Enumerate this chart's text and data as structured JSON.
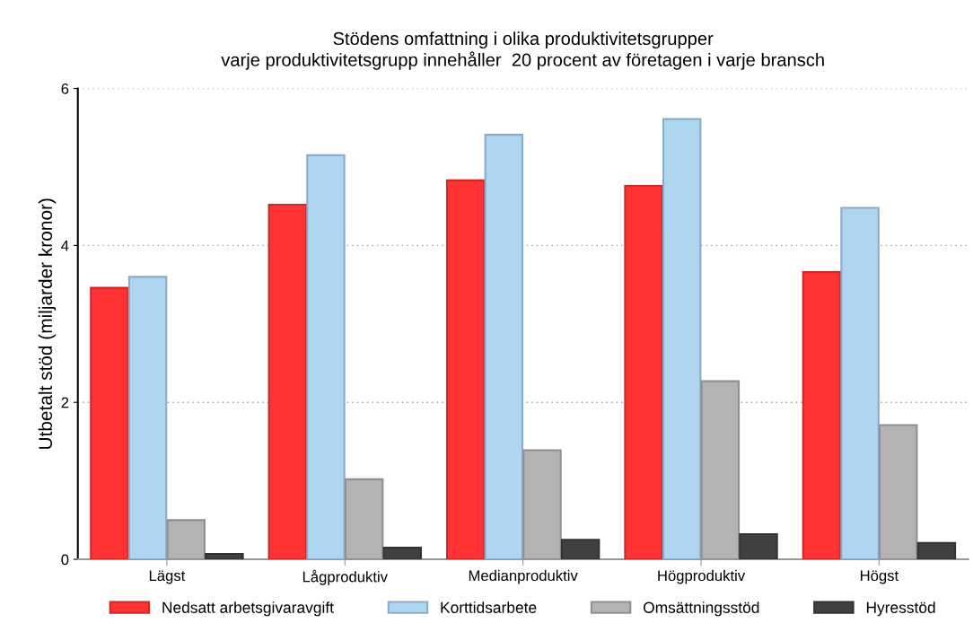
{
  "chart_data": {
    "type": "bar",
    "title": "Stödens omfattning i olika produktivitetsgrupper\nvarje produktivitetsgrupp innehåller  20 procent av företagen i varje bransch",
    "ylabel": "Utbetalt stöd (miljarder kronor)",
    "categories": [
      "Lägst",
      "Lågproduktiv",
      "Medianproduktiv",
      "Högproduktiv",
      "Högst"
    ],
    "series": [
      {
        "name": "Nedsatt arbetsgivaravgift",
        "color": "#ff3333",
        "values": [
          3.46,
          4.52,
          4.83,
          4.76,
          3.66
        ]
      },
      {
        "name": "Korttidsarbete",
        "color": "#aed6f1",
        "values": [
          3.6,
          5.15,
          5.41,
          5.61,
          4.48
        ]
      },
      {
        "name": "Omsättningsstöd",
        "color": "#b3b3b3",
        "values": [
          0.5,
          1.02,
          1.39,
          2.27,
          1.71
        ]
      },
      {
        "name": "Hyresstöd",
        "color": "#404040",
        "values": [
          0.07,
          0.15,
          0.25,
          0.32,
          0.21
        ]
      }
    ],
    "ylim": [
      0,
      6
    ],
    "yticks": [
      0,
      2,
      4,
      6
    ],
    "grid": "y",
    "legend": "bottom"
  }
}
